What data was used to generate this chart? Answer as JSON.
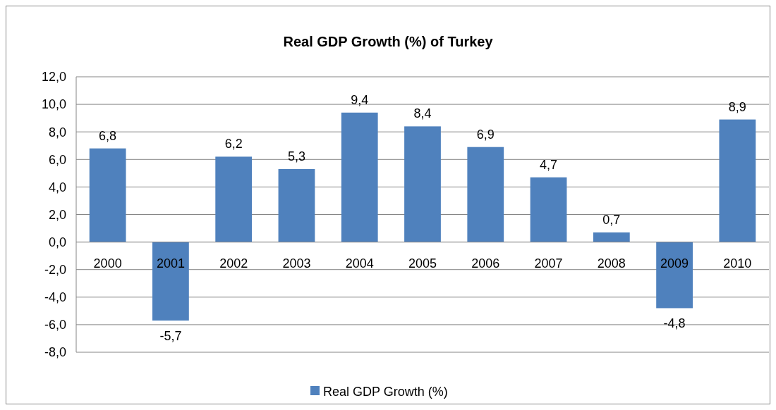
{
  "chart_data": {
    "type": "bar",
    "title": "Real GDP Growth (%) of Turkey",
    "categories": [
      "2000",
      "2001",
      "2002",
      "2003",
      "2004",
      "2005",
      "2006",
      "2007",
      "2008",
      "2009",
      "2010"
    ],
    "series": [
      {
        "name": "Real GDP Growth (%)",
        "color": "#4f81bd",
        "values": [
          6.8,
          -5.7,
          6.2,
          5.3,
          9.4,
          8.4,
          6.9,
          4.7,
          0.7,
          -4.8,
          8.9
        ],
        "value_labels": [
          "6,8",
          "-5,7",
          "6,2",
          "5,3",
          "9,4",
          "8,4",
          "6,9",
          "4,7",
          "0,7",
          "-4,8",
          "8,9"
        ]
      }
    ],
    "ylim": [
      -8,
      12
    ],
    "yticks": [
      {
        "value": -8,
        "label": "-8,0"
      },
      {
        "value": -6,
        "label": "-6,0"
      },
      {
        "value": -4,
        "label": "-4,0"
      },
      {
        "value": -2,
        "label": "-2,0"
      },
      {
        "value": 0,
        "label": "0,0"
      },
      {
        "value": 2,
        "label": "2,0"
      },
      {
        "value": 4,
        "label": "4,0"
      },
      {
        "value": 6,
        "label": "6,0"
      },
      {
        "value": 8,
        "label": "8,0"
      },
      {
        "value": 10,
        "label": "10,0"
      },
      {
        "value": 12,
        "label": "12,0"
      }
    ],
    "grid": "y",
    "legend": "bottom"
  }
}
